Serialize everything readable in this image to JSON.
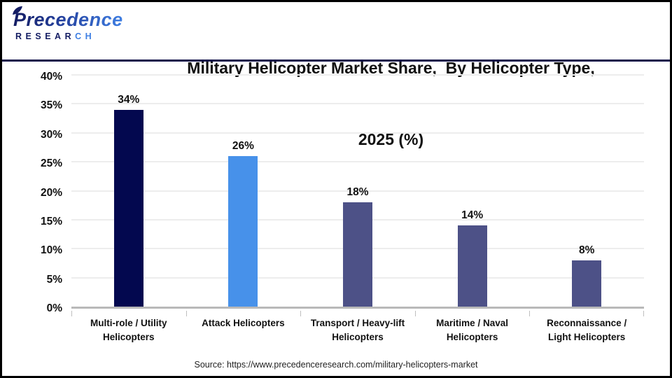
{
  "brand": {
    "name": "Precedence",
    "subname_main": "RESEAR",
    "subname_accent": "CH",
    "color_dark": "#141d63",
    "color_accent": "#3f7fe3"
  },
  "title": {
    "line1": "Military Helicopter Market Share,  By Helicopter Type,",
    "line2": "2025 (%)"
  },
  "source": "Source: https://www.precedenceresearch.com/military-helicopters-market",
  "chart_data": {
    "type": "bar",
    "title": "Military Helicopter Market Share, By Helicopter Type, 2025 (%)",
    "categories": [
      "Multi-role / Utility Helicopters",
      "Attack Helicopters",
      "Transport / Heavy-lift Helicopters",
      "Maritime / Naval Helicopters",
      "Reconnaissance / Light Helicopters"
    ],
    "values": [
      34,
      26,
      18,
      14,
      8
    ],
    "value_labels": [
      "34%",
      "26%",
      "18%",
      "14%",
      "8%"
    ],
    "bar_colors": [
      "#03084f",
      "#4791ea",
      "#4d5187",
      "#4d5187",
      "#4d5187"
    ],
    "y_ticks": [
      0,
      5,
      10,
      15,
      20,
      25,
      30,
      35,
      40
    ],
    "y_tick_labels": [
      "0%",
      "5%",
      "10%",
      "15%",
      "20%",
      "25%",
      "30%",
      "35%",
      "40%"
    ],
    "ylim": [
      0,
      40
    ],
    "xlabel": "",
    "ylabel": "",
    "grid": true,
    "legend": false,
    "gridline_color": "#ededed",
    "axis_line_color": "#b9b9b9"
  }
}
